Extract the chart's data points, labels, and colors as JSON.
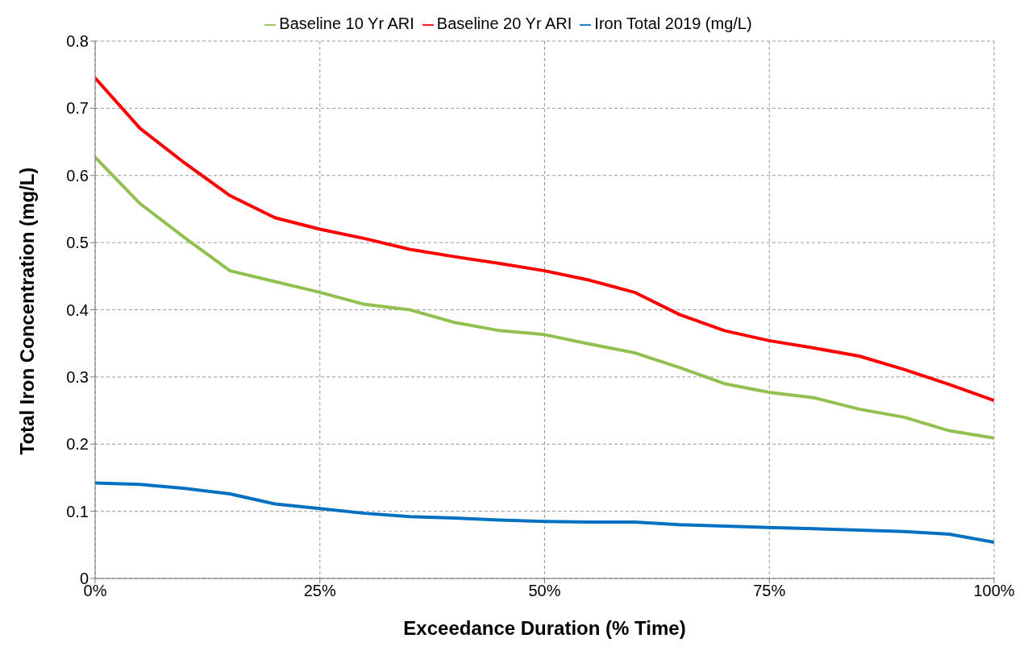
{
  "chart_data": {
    "type": "line",
    "xlabel": "Exceedance Duration (% Time)",
    "ylabel": "Total Iron Concentration (mg/L)",
    "x": [
      0,
      5,
      10,
      15,
      20,
      25,
      30,
      35,
      40,
      45,
      50,
      55,
      60,
      65,
      70,
      75,
      80,
      85,
      90,
      95,
      100
    ],
    "series": [
      {
        "name": "Iron Total 2019 (mg/L)",
        "color": "#0070c0",
        "values": [
          0.142,
          0.14,
          0.134,
          0.126,
          0.111,
          0.104,
          0.097,
          0.092,
          0.09,
          0.087,
          0.085,
          0.084,
          0.084,
          0.08,
          0.078,
          0.076,
          0.074,
          0.072,
          0.07,
          0.066,
          0.054
        ]
      },
      {
        "name": "Baseline 20 Yr ARI",
        "color": "#ff0000",
        "values": [
          0.745,
          0.67,
          0.618,
          0.57,
          0.537,
          0.52,
          0.506,
          0.49,
          0.479,
          0.469,
          0.458,
          0.444,
          0.426,
          0.393,
          0.369,
          0.354,
          0.343,
          0.331,
          0.311,
          0.289,
          0.265
        ]
      },
      {
        "name": "Baseline 10 Yr ARI",
        "color": "#92c050",
        "values": [
          0.627,
          0.558,
          0.507,
          0.458,
          0.442,
          0.426,
          0.408,
          0.4,
          0.381,
          0.369,
          0.363,
          0.349,
          0.336,
          0.314,
          0.29,
          0.277,
          0.269,
          0.252,
          0.24,
          0.22,
          0.209
        ]
      }
    ],
    "xlim": [
      0,
      100
    ],
    "xticks": [
      {
        "value": 0,
        "label": "0%"
      },
      {
        "value": 25,
        "label": "25%"
      },
      {
        "value": 50,
        "label": "50%"
      },
      {
        "value": 75,
        "label": "75%"
      },
      {
        "value": 100,
        "label": "100%"
      }
    ],
    "ylim": [
      0,
      0.8
    ],
    "yticks": [
      0,
      0.1,
      0.2,
      0.3,
      0.4,
      0.5,
      0.6,
      0.7,
      0.8
    ],
    "grid": true,
    "legend": "top",
    "marker": "none",
    "line_style": "solid"
  }
}
